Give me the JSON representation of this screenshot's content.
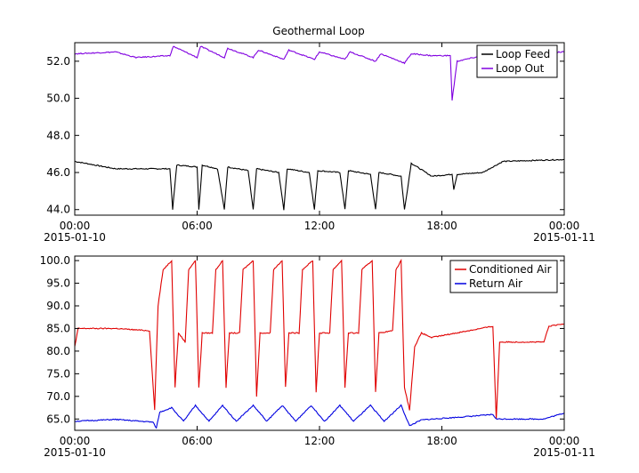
{
  "chart_data": [
    {
      "type": "line",
      "title": "Geothermal Loop",
      "xlabel": "",
      "ylabel": "",
      "x_range": [
        "2015-01-10 00:00",
        "2015-01-11 00:00"
      ],
      "ylim": [
        43.7,
        53.0
      ],
      "y_ticks": [
        "44.0",
        "46.0",
        "48.0",
        "50.0",
        "52.0"
      ],
      "x_ticks": [
        "00:00",
        "06:00",
        "12:00",
        "18:00",
        "00:00"
      ],
      "x_tick_dates": [
        "2015-01-10",
        "",
        "",
        "",
        "2015-01-11"
      ],
      "legend_position": "top-right",
      "grid": false,
      "series": [
        {
          "name": "Loop Feed",
          "color": "#000000",
          "points": [
            [
              "00:00",
              46.6
            ],
            [
              "02:00",
              46.2
            ],
            [
              "04:00",
              46.2
            ],
            [
              "04:40",
              46.2
            ],
            [
              "04:48",
              44.0
            ],
            [
              "05:00",
              46.4
            ],
            [
              "06:00",
              46.3
            ],
            [
              "06:05",
              44.0
            ],
            [
              "06:15",
              46.4
            ],
            [
              "07:00",
              46.2
            ],
            [
              "07:20",
              44.0
            ],
            [
              "07:30",
              46.3
            ],
            [
              "08:30",
              46.1
            ],
            [
              "08:45",
              44.0
            ],
            [
              "08:55",
              46.2
            ],
            [
              "10:00",
              46.0
            ],
            [
              "10:15",
              44.0
            ],
            [
              "10:25",
              46.2
            ],
            [
              "11:30",
              46.0
            ],
            [
              "11:45",
              44.0
            ],
            [
              "11:55",
              46.1
            ],
            [
              "13:00",
              46.0
            ],
            [
              "13:15",
              44.0
            ],
            [
              "13:25",
              46.1
            ],
            [
              "14:30",
              45.9
            ],
            [
              "14:45",
              44.0
            ],
            [
              "14:55",
              46.0
            ],
            [
              "15:30",
              45.9
            ],
            [
              "16:00",
              45.8
            ],
            [
              "16:10",
              44.0
            ],
            [
              "16:30",
              46.5
            ],
            [
              "17:30",
              45.8
            ],
            [
              "18:30",
              45.9
            ],
            [
              "18:35",
              45.1
            ],
            [
              "18:45",
              45.9
            ],
            [
              "20:00",
              46.0
            ],
            [
              "21:00",
              46.6
            ],
            [
              "23:59",
              46.7
            ]
          ]
        },
        {
          "name": "Loop Out",
          "color": "#8000e0",
          "points": [
            [
              "00:00",
              52.4
            ],
            [
              "02:00",
              52.5
            ],
            [
              "03:00",
              52.2
            ],
            [
              "04:40",
              52.3
            ],
            [
              "04:50",
              52.8
            ],
            [
              "06:00",
              52.2
            ],
            [
              "06:10",
              52.8
            ],
            [
              "07:20",
              52.2
            ],
            [
              "07:30",
              52.7
            ],
            [
              "08:45",
              52.2
            ],
            [
              "09:00",
              52.6
            ],
            [
              "10:15",
              52.1
            ],
            [
              "10:30",
              52.6
            ],
            [
              "11:45",
              52.1
            ],
            [
              "12:00",
              52.5
            ],
            [
              "13:15",
              52.1
            ],
            [
              "13:30",
              52.5
            ],
            [
              "14:45",
              52.0
            ],
            [
              "15:00",
              52.4
            ],
            [
              "16:10",
              51.9
            ],
            [
              "16:30",
              52.4
            ],
            [
              "17:30",
              52.3
            ],
            [
              "18:25",
              52.3
            ],
            [
              "18:30",
              49.9
            ],
            [
              "18:45",
              52.0
            ],
            [
              "20:00",
              52.3
            ],
            [
              "21:00",
              52.4
            ],
            [
              "23:59",
              52.5
            ]
          ]
        }
      ]
    },
    {
      "type": "line",
      "title": "",
      "xlabel": "",
      "ylabel": "",
      "x_range": [
        "2015-01-10 00:00",
        "2015-01-11 00:00"
      ],
      "ylim": [
        62.5,
        101.0
      ],
      "y_ticks": [
        "65.0",
        "70.0",
        "75.0",
        "80.0",
        "85.0",
        "90.0",
        "95.0",
        "100.0"
      ],
      "x_ticks": [
        "00:00",
        "06:00",
        "12:00",
        "18:00",
        "00:00"
      ],
      "x_tick_dates": [
        "2015-01-10",
        "",
        "",
        "",
        "2015-01-11"
      ],
      "legend_position": "top-right",
      "grid": false,
      "series": [
        {
          "name": "Conditioned Air",
          "color": "#e00000",
          "points": [
            [
              "00:00",
              81.0
            ],
            [
              "00:10",
              85.0
            ],
            [
              "02:00",
              85.0
            ],
            [
              "03:40",
              84.5
            ],
            [
              "03:55",
              67.0
            ],
            [
              "04:05",
              90.0
            ],
            [
              "04:20",
              98.0
            ],
            [
              "04:45",
              100.0
            ],
            [
              "04:55",
              72.0
            ],
            [
              "05:05",
              84.0
            ],
            [
              "05:25",
              82.0
            ],
            [
              "05:35",
              98.0
            ],
            [
              "05:55",
              100.0
            ],
            [
              "06:05",
              72.0
            ],
            [
              "06:15",
              84.0
            ],
            [
              "06:45",
              84.0
            ],
            [
              "06:55",
              98.0
            ],
            [
              "07:15",
              100.0
            ],
            [
              "07:25",
              72.0
            ],
            [
              "07:35",
              84.0
            ],
            [
              "08:05",
              84.0
            ],
            [
              "08:15",
              98.0
            ],
            [
              "08:45",
              100.0
            ],
            [
              "08:55",
              70.0
            ],
            [
              "09:05",
              84.0
            ],
            [
              "09:35",
              84.0
            ],
            [
              "09:45",
              98.0
            ],
            [
              "10:10",
              100.0
            ],
            [
              "10:20",
              72.0
            ],
            [
              "10:30",
              84.0
            ],
            [
              "11:00",
              84.0
            ],
            [
              "11:10",
              98.0
            ],
            [
              "11:40",
              100.0
            ],
            [
              "11:50",
              71.0
            ],
            [
              "12:00",
              84.0
            ],
            [
              "12:30",
              84.0
            ],
            [
              "12:40",
              98.0
            ],
            [
              "13:05",
              100.0
            ],
            [
              "13:15",
              72.0
            ],
            [
              "13:25",
              84.0
            ],
            [
              "13:55",
              84.0
            ],
            [
              "14:05",
              98.0
            ],
            [
              "14:35",
              100.0
            ],
            [
              "14:45",
              71.0
            ],
            [
              "14:55",
              84.0
            ],
            [
              "15:35",
              84.5
            ],
            [
              "15:45",
              98.0
            ],
            [
              "16:00",
              100.0
            ],
            [
              "16:10",
              72.0
            ],
            [
              "16:25",
              67.0
            ],
            [
              "16:40",
              81.0
            ],
            [
              "17:00",
              84.0
            ],
            [
              "17:30",
              83.0
            ],
            [
              "20:30",
              85.5
            ],
            [
              "20:40",
              65.0
            ],
            [
              "20:50",
              82.0
            ],
            [
              "23:00",
              82.0
            ],
            [
              "23:15",
              85.5
            ],
            [
              "23:59",
              86.0
            ]
          ]
        },
        {
          "name": "Return Air",
          "color": "#0000e0",
          "points": [
            [
              "00:00",
              64.5
            ],
            [
              "02:00",
              64.9
            ],
            [
              "03:50",
              64.3
            ],
            [
              "04:00",
              63.0
            ],
            [
              "04:10",
              66.5
            ],
            [
              "04:45",
              67.5
            ],
            [
              "05:20",
              64.5
            ],
            [
              "05:55",
              68.0
            ],
            [
              "06:35",
              64.5
            ],
            [
              "07:15",
              68.0
            ],
            [
              "07:55",
              64.5
            ],
            [
              "08:45",
              68.0
            ],
            [
              "09:25",
              64.5
            ],
            [
              "10:10",
              68.0
            ],
            [
              "10:50",
              64.5
            ],
            [
              "11:35",
              68.0
            ],
            [
              "12:15",
              64.5
            ],
            [
              "13:00",
              68.0
            ],
            [
              "13:40",
              64.5
            ],
            [
              "14:30",
              68.0
            ],
            [
              "15:10",
              64.5
            ],
            [
              "16:00",
              68.0
            ],
            [
              "16:25",
              63.5
            ],
            [
              "17:00",
              64.8
            ],
            [
              "20:00",
              65.8
            ],
            [
              "20:30",
              66.0
            ],
            [
              "20:40",
              65.0
            ],
            [
              "23:00",
              65.0
            ],
            [
              "23:59",
              66.3
            ]
          ]
        }
      ]
    }
  ]
}
